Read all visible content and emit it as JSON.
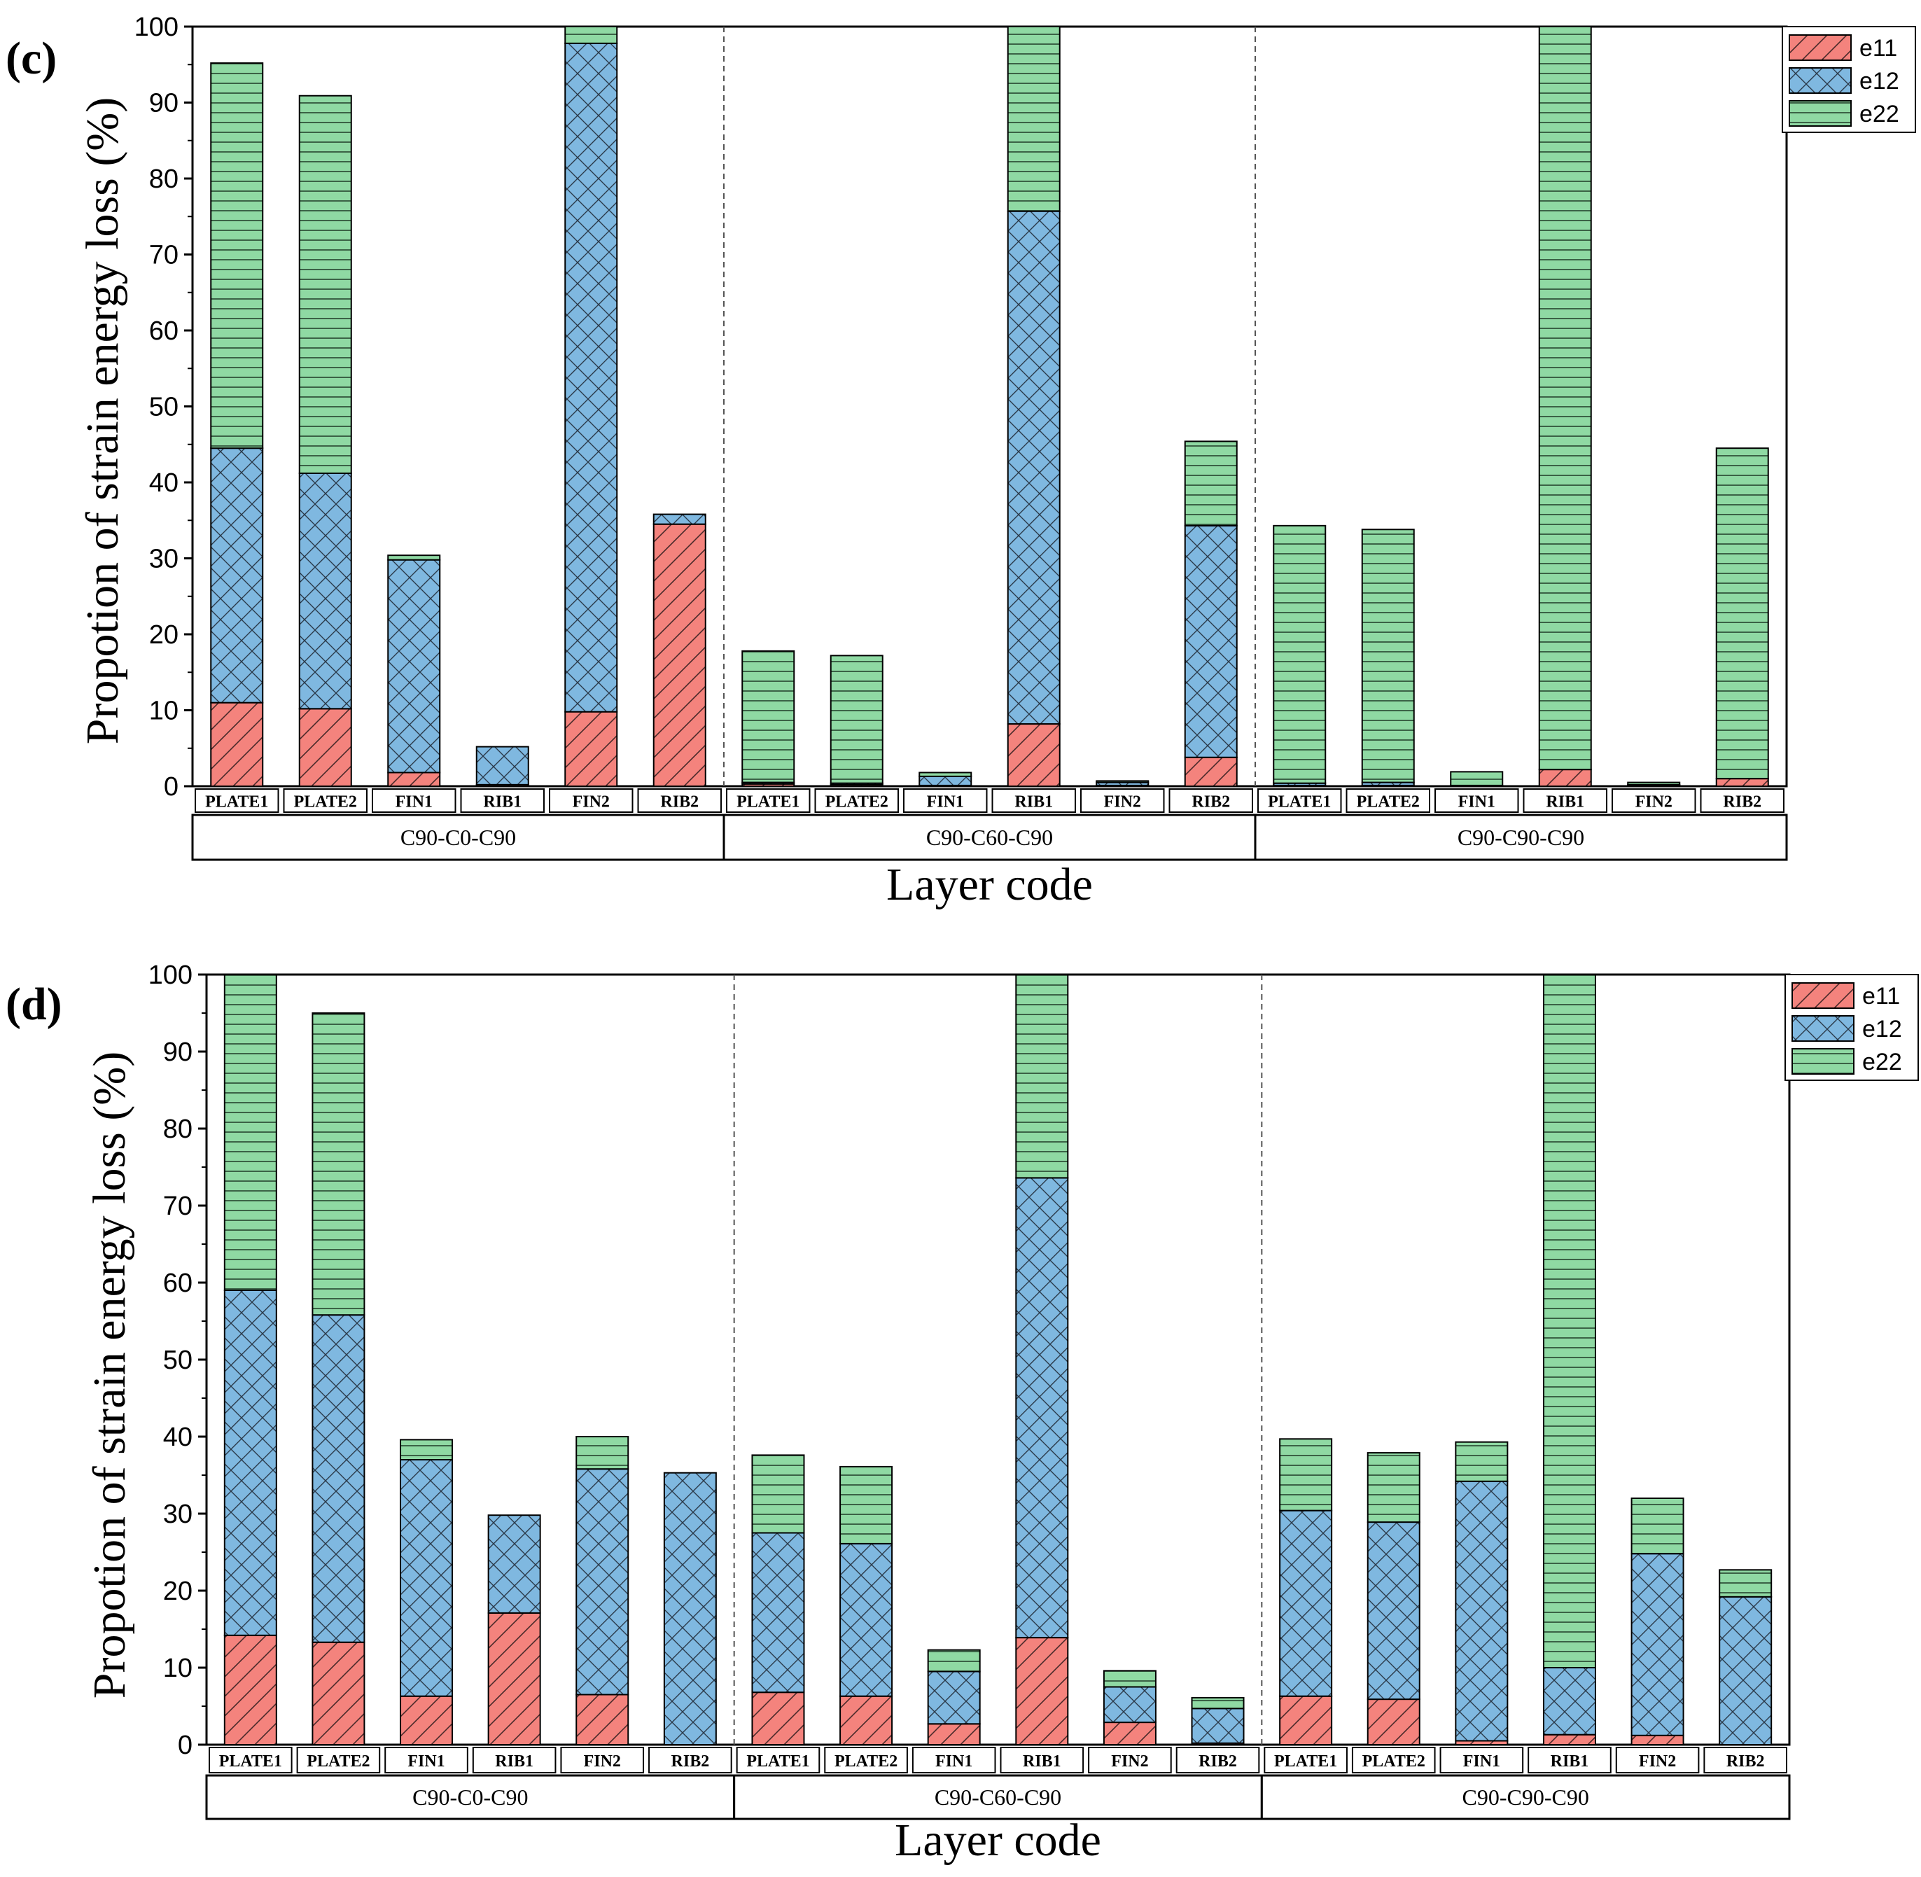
{
  "colors": {
    "e11": "#f4837d",
    "e12": "#7fb8e0",
    "e22": "#8fd9a3"
  },
  "chart_data": [
    {
      "type": "bar",
      "stacked": true,
      "panel_label": "(c)",
      "xlabel": "Layer code",
      "ylabel": "Propotion of strain energy loss (%)",
      "ylim": [
        0,
        100
      ],
      "yticks": [
        "0",
        "10",
        "20",
        "30",
        "40",
        "50",
        "60",
        "70",
        "80",
        "90",
        "100"
      ],
      "legend_position": "top-right",
      "groups": [
        {
          "label": "C90-C0-C90",
          "categories": [
            "PLATE1",
            "PLATE2",
            "FIN1",
            "RIB1",
            "FIN2",
            "RIB2"
          ]
        },
        {
          "label": "C90-C60-C90",
          "categories": [
            "PLATE1",
            "PLATE2",
            "FIN1",
            "RIB1",
            "FIN2",
            "RIB2"
          ]
        },
        {
          "label": "C90-C90-C90",
          "categories": [
            "PLATE1",
            "PLATE2",
            "FIN1",
            "RIB1",
            "FIN2",
            "RIB2"
          ]
        }
      ],
      "series": [
        {
          "name": "e11",
          "values": [
            11,
            10.2,
            1.8,
            0.2,
            9.8,
            34.5,
            0.3,
            0.2,
            0.1,
            8.2,
            0.1,
            3.8,
            0.1,
            0.1,
            0.1,
            2.2,
            0.1,
            1.0
          ]
        },
        {
          "name": "e12",
          "values": [
            33.5,
            31,
            28,
            5,
            88,
            1.3,
            0.2,
            0.2,
            1.2,
            67.5,
            0.4,
            30.5,
            0.3,
            0.4,
            0,
            0,
            0.1,
            0
          ]
        },
        {
          "name": "e22",
          "values": [
            50.7,
            49.7,
            0.6,
            0,
            2.2,
            0,
            17.3,
            16.8,
            0.5,
            24.3,
            0.2,
            11.1,
            33.9,
            33.3,
            1.8,
            97.8,
            0.3,
            43.5
          ]
        }
      ]
    },
    {
      "type": "bar",
      "stacked": true,
      "panel_label": "(d)",
      "xlabel": "Layer code",
      "ylabel": "Propotion of strain energy loss (%)",
      "ylim": [
        0,
        100
      ],
      "yticks": [
        "0",
        "10",
        "20",
        "30",
        "40",
        "50",
        "60",
        "70",
        "80",
        "90",
        "100"
      ],
      "legend_position": "top-right",
      "groups": [
        {
          "label": "C90-C0-C90",
          "categories": [
            "PLATE1",
            "PLATE2",
            "FIN1",
            "RIB1",
            "FIN2",
            "RIB2"
          ]
        },
        {
          "label": "C90-C60-C90",
          "categories": [
            "PLATE1",
            "PLATE2",
            "FIN1",
            "RIB1",
            "FIN2",
            "RIB2"
          ]
        },
        {
          "label": "C90-C90-C90",
          "categories": [
            "PLATE1",
            "PLATE2",
            "FIN1",
            "RIB1",
            "FIN2",
            "RIB2"
          ]
        }
      ],
      "series": [
        {
          "name": "e11",
          "values": [
            14.2,
            13.3,
            6.3,
            17.1,
            6.5,
            0,
            6.8,
            6.3,
            2.7,
            13.9,
            2.9,
            0.2,
            6.3,
            5.9,
            0.5,
            1.3,
            1.2,
            0
          ]
        },
        {
          "name": "e12",
          "values": [
            44.8,
            42.5,
            30.7,
            12.7,
            29.3,
            35.3,
            20.7,
            19.8,
            6.8,
            59.7,
            4.6,
            4.5,
            24.1,
            23.0,
            33.7,
            8.7,
            23.6,
            19.2
          ]
        },
        {
          "name": "e22",
          "values": [
            41.0,
            39.2,
            2.6,
            0,
            4.2,
            0,
            10.1,
            10.0,
            2.8,
            26.4,
            2.1,
            1.4,
            9.3,
            9.0,
            5.1,
            90.0,
            7.2,
            3.5
          ]
        }
      ]
    }
  ]
}
